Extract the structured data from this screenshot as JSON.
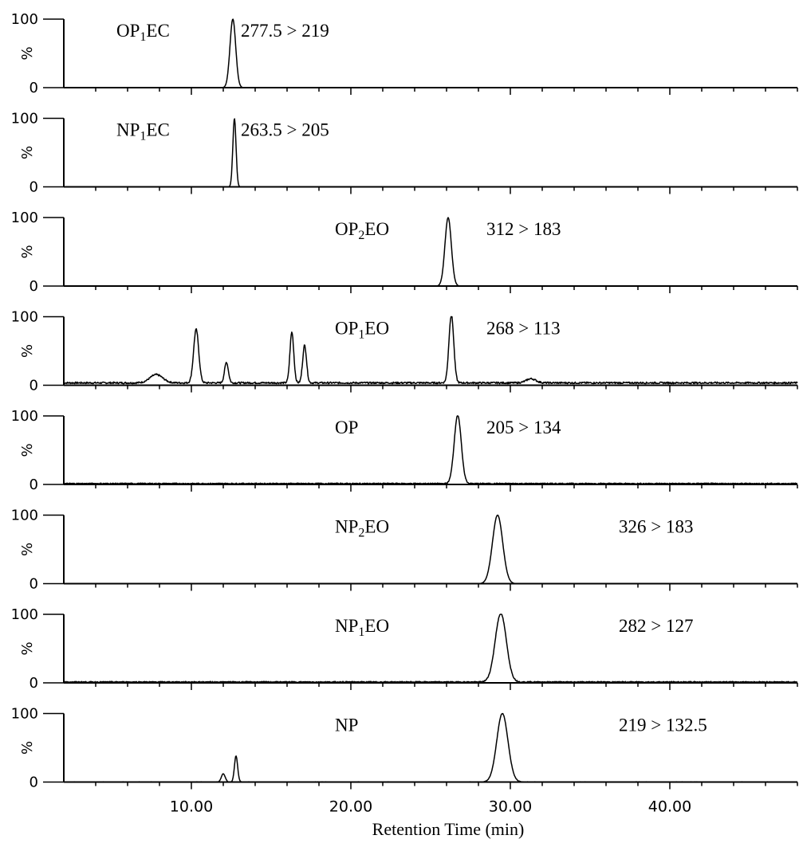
{
  "chart_data": {
    "type": "line",
    "xlabel": "Retention Time (min)",
    "xlim": [
      2,
      48
    ],
    "x_ticks": [
      "10.00",
      "20.00",
      "30.00",
      "40.00"
    ],
    "x_tick_values": [
      10,
      20,
      30,
      40
    ],
    "y_ticks": [
      "100",
      "0"
    ],
    "y_unit": "%",
    "ylim": [
      0,
      100
    ],
    "panels": [
      {
        "compound": "OP",
        "subscript": "1",
        "suffix": "EC",
        "transition": "277.5 > 219",
        "peaks": [
          {
            "rt": 12.6,
            "height": 100,
            "width": 0.18
          }
        ],
        "noise": 0,
        "baseline": 0
      },
      {
        "compound": "NP",
        "subscript": "1",
        "suffix": "EC",
        "transition": "263.5 > 205",
        "peaks": [
          {
            "rt": 12.7,
            "height": 100,
            "width": 0.1
          }
        ],
        "noise": 0,
        "baseline": 0
      },
      {
        "compound": "OP",
        "subscript": "2",
        "suffix": "EO",
        "transition": "312 > 183",
        "peaks": [
          {
            "rt": 26.1,
            "height": 100,
            "width": 0.2
          }
        ],
        "noise": 0,
        "baseline": 0
      },
      {
        "compound": "OP",
        "subscript": "1",
        "suffix": "EO",
        "transition": "268 > 113",
        "peaks": [
          {
            "rt": 7.8,
            "height": 12,
            "width": 0.4
          },
          {
            "rt": 10.3,
            "height": 78,
            "width": 0.16
          },
          {
            "rt": 12.2,
            "height": 30,
            "width": 0.12
          },
          {
            "rt": 16.3,
            "height": 74,
            "width": 0.12
          },
          {
            "rt": 17.1,
            "height": 55,
            "width": 0.12
          },
          {
            "rt": 26.3,
            "height": 100,
            "width": 0.15
          },
          {
            "rt": 31.3,
            "height": 6,
            "width": 0.3
          }
        ],
        "noise": 2.5,
        "baseline": 3
      },
      {
        "compound": "OP",
        "subscript": "",
        "suffix": "",
        "transition": "205 > 134",
        "peaks": [
          {
            "rt": 26.7,
            "height": 100,
            "width": 0.22
          }
        ],
        "noise": 1.5,
        "baseline": 1
      },
      {
        "compound": "NP",
        "subscript": "2",
        "suffix": "EO",
        "transition": "326 > 183",
        "peaks": [
          {
            "rt": 29.2,
            "height": 100,
            "width": 0.32
          }
        ],
        "noise": 0,
        "baseline": 0
      },
      {
        "compound": "NP",
        "subscript": "1",
        "suffix": "EO",
        "transition": "282 > 127",
        "peaks": [
          {
            "rt": 29.4,
            "height": 100,
            "width": 0.35
          }
        ],
        "noise": 1.5,
        "baseline": 1
      },
      {
        "compound": "NP",
        "subscript": "",
        "suffix": "",
        "transition": "219 > 132.5",
        "peaks": [
          {
            "rt": 12.0,
            "height": 12,
            "width": 0.12
          },
          {
            "rt": 12.8,
            "height": 38,
            "width": 0.1
          },
          {
            "rt": 29.5,
            "height": 100,
            "width": 0.35
          }
        ],
        "noise": 0.6,
        "baseline": 0
      }
    ]
  }
}
